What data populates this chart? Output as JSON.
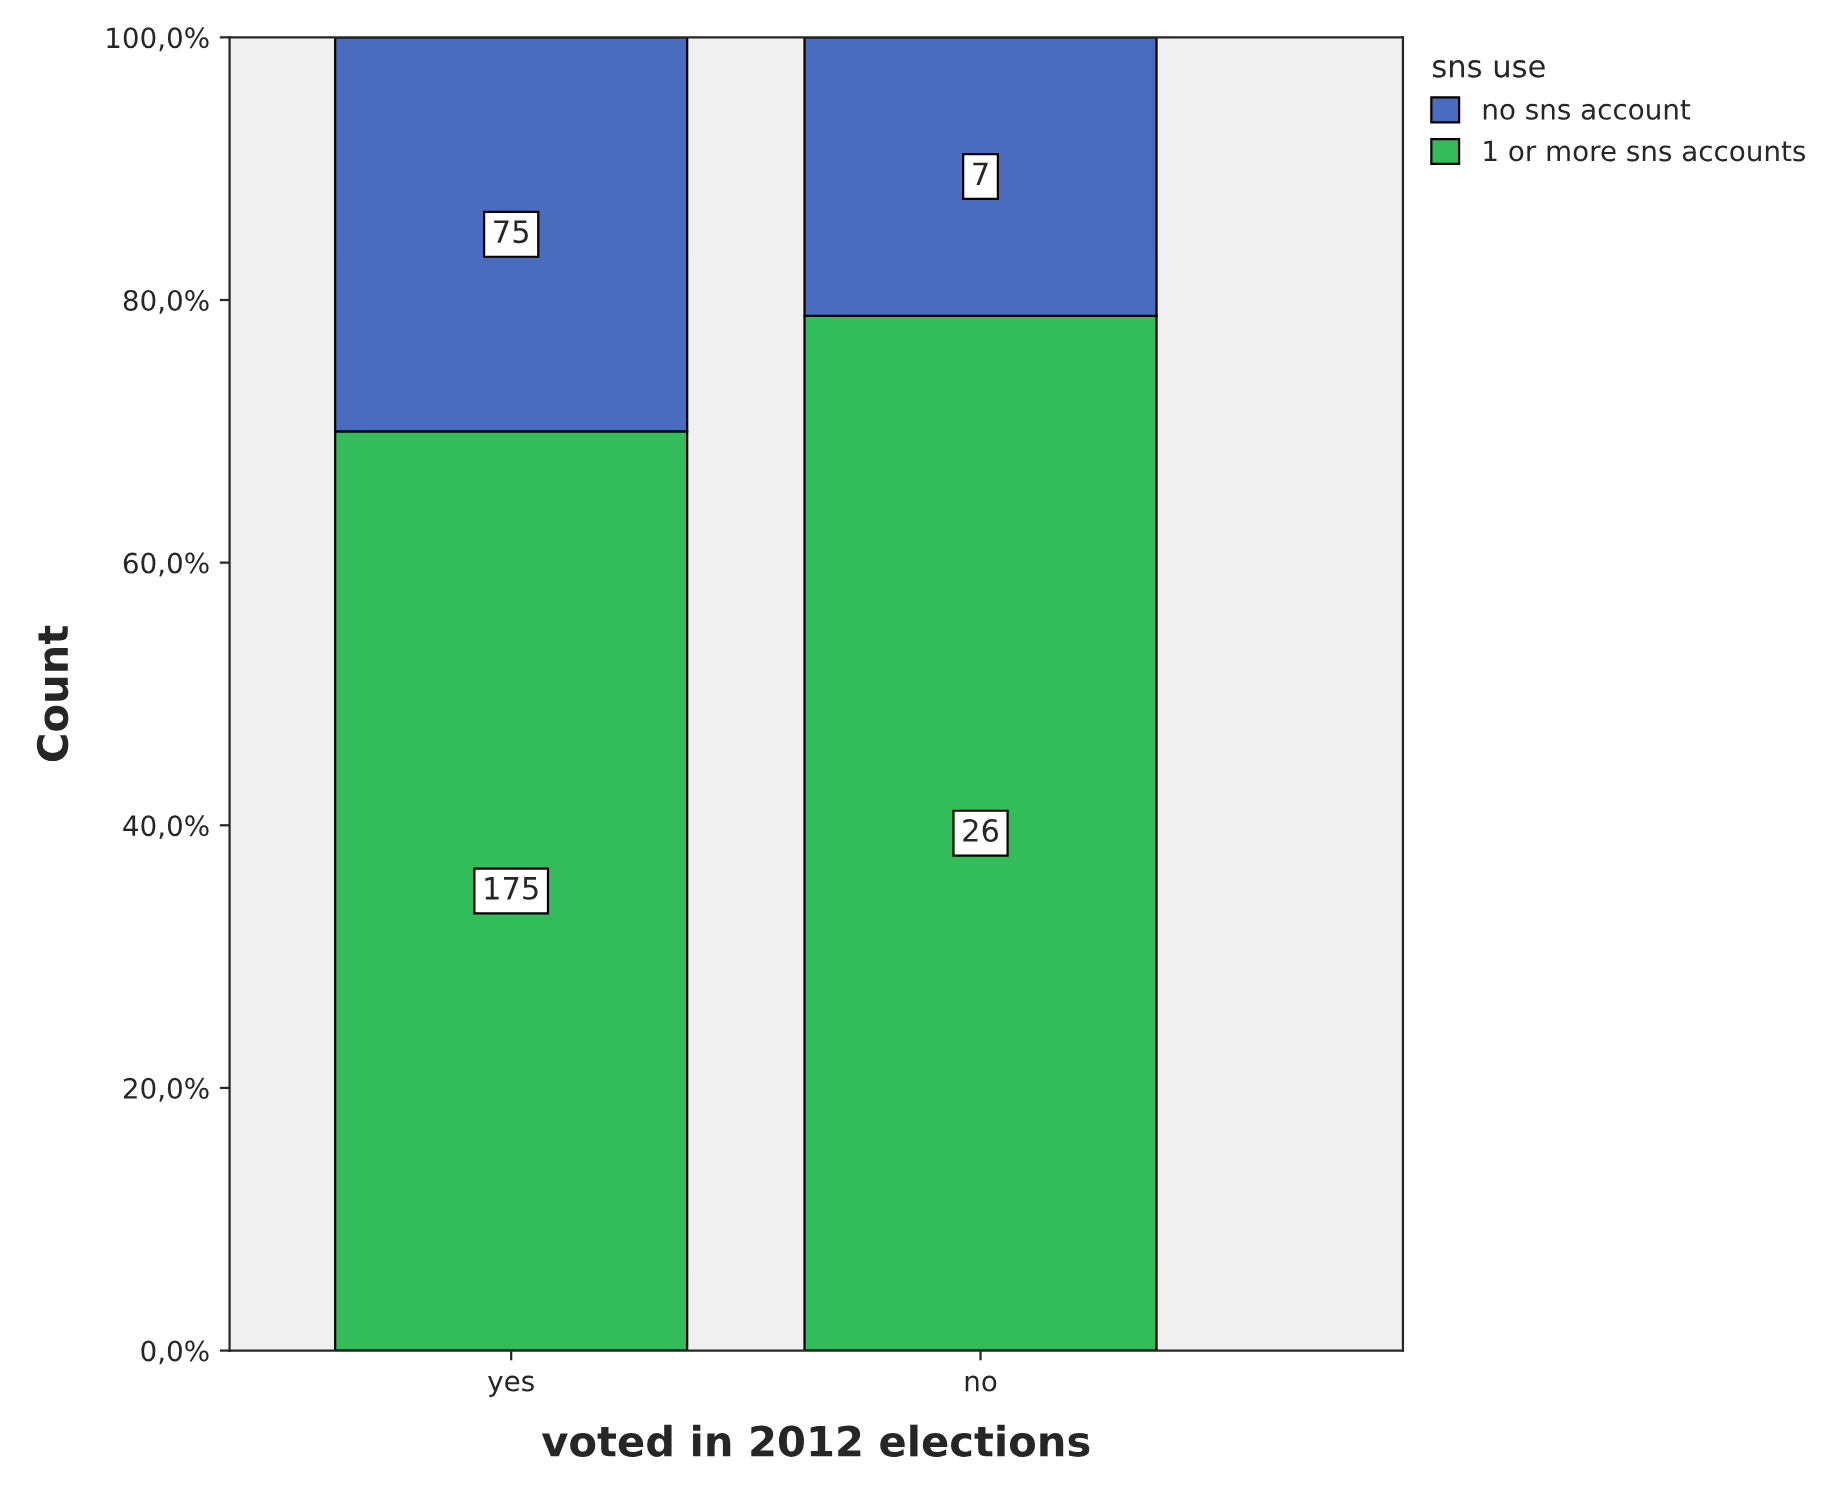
{
  "chart_data": {
    "type": "bar",
    "stacked": true,
    "xlabel": "voted in 2012 elections",
    "ylabel": "Count",
    "legend_title": "sns use",
    "legend": "top right",
    "categories": [
      "yes",
      "no"
    ],
    "series": [
      {
        "name": "1 or more sns accounts",
        "color": "#33bd5a",
        "values": [
          70.0,
          78.8
        ]
      },
      {
        "name": "no sns account",
        "color": "#4a6cbf",
        "values": [
          30.0,
          21.2
        ]
      }
    ],
    "annotations": [
      {
        "text": "175",
        "x": "yes",
        "y": 35
      },
      {
        "text": "26",
        "x": "no",
        "y": 39.4
      },
      {
        "text": "75",
        "x": "yes",
        "y": 85
      },
      {
        "text": "7",
        "x": "no",
        "y": 89.4
      }
    ],
    "ylim": [
      0,
      100
    ],
    "yticks": [
      {
        "value": 0,
        "label": "0,0%"
      },
      {
        "value": 20,
        "label": "20,0%"
      },
      {
        "value": 40,
        "label": "40,0%"
      },
      {
        "value": 60,
        "label": "60,0%"
      },
      {
        "value": 80,
        "label": "80,0%"
      },
      {
        "value": 100,
        "label": "100,0%"
      }
    ],
    "grid": false
  }
}
